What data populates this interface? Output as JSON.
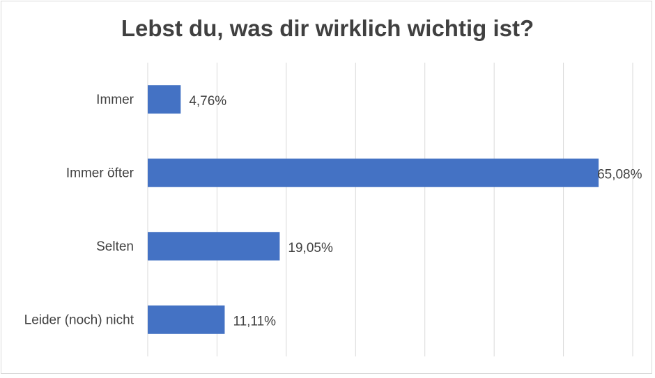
{
  "chart_data": {
    "type": "bar",
    "orientation": "horizontal",
    "title": "Lebst du, was dir wirklich wichtig ist?",
    "categories": [
      "Immer",
      "Immer öfter",
      "Selten",
      "Leider (noch) nicht"
    ],
    "values": [
      4.76,
      65.08,
      19.05,
      11.11
    ],
    "data_labels": [
      "4,76%",
      "65,08%",
      "19,05%",
      "11,11%"
    ],
    "xlabel": "",
    "ylabel": "",
    "xlim": [
      0,
      70
    ],
    "x_grid_step": 10,
    "grid": true,
    "tick_labels_shown": false,
    "bar_color": "#4472c4"
  }
}
